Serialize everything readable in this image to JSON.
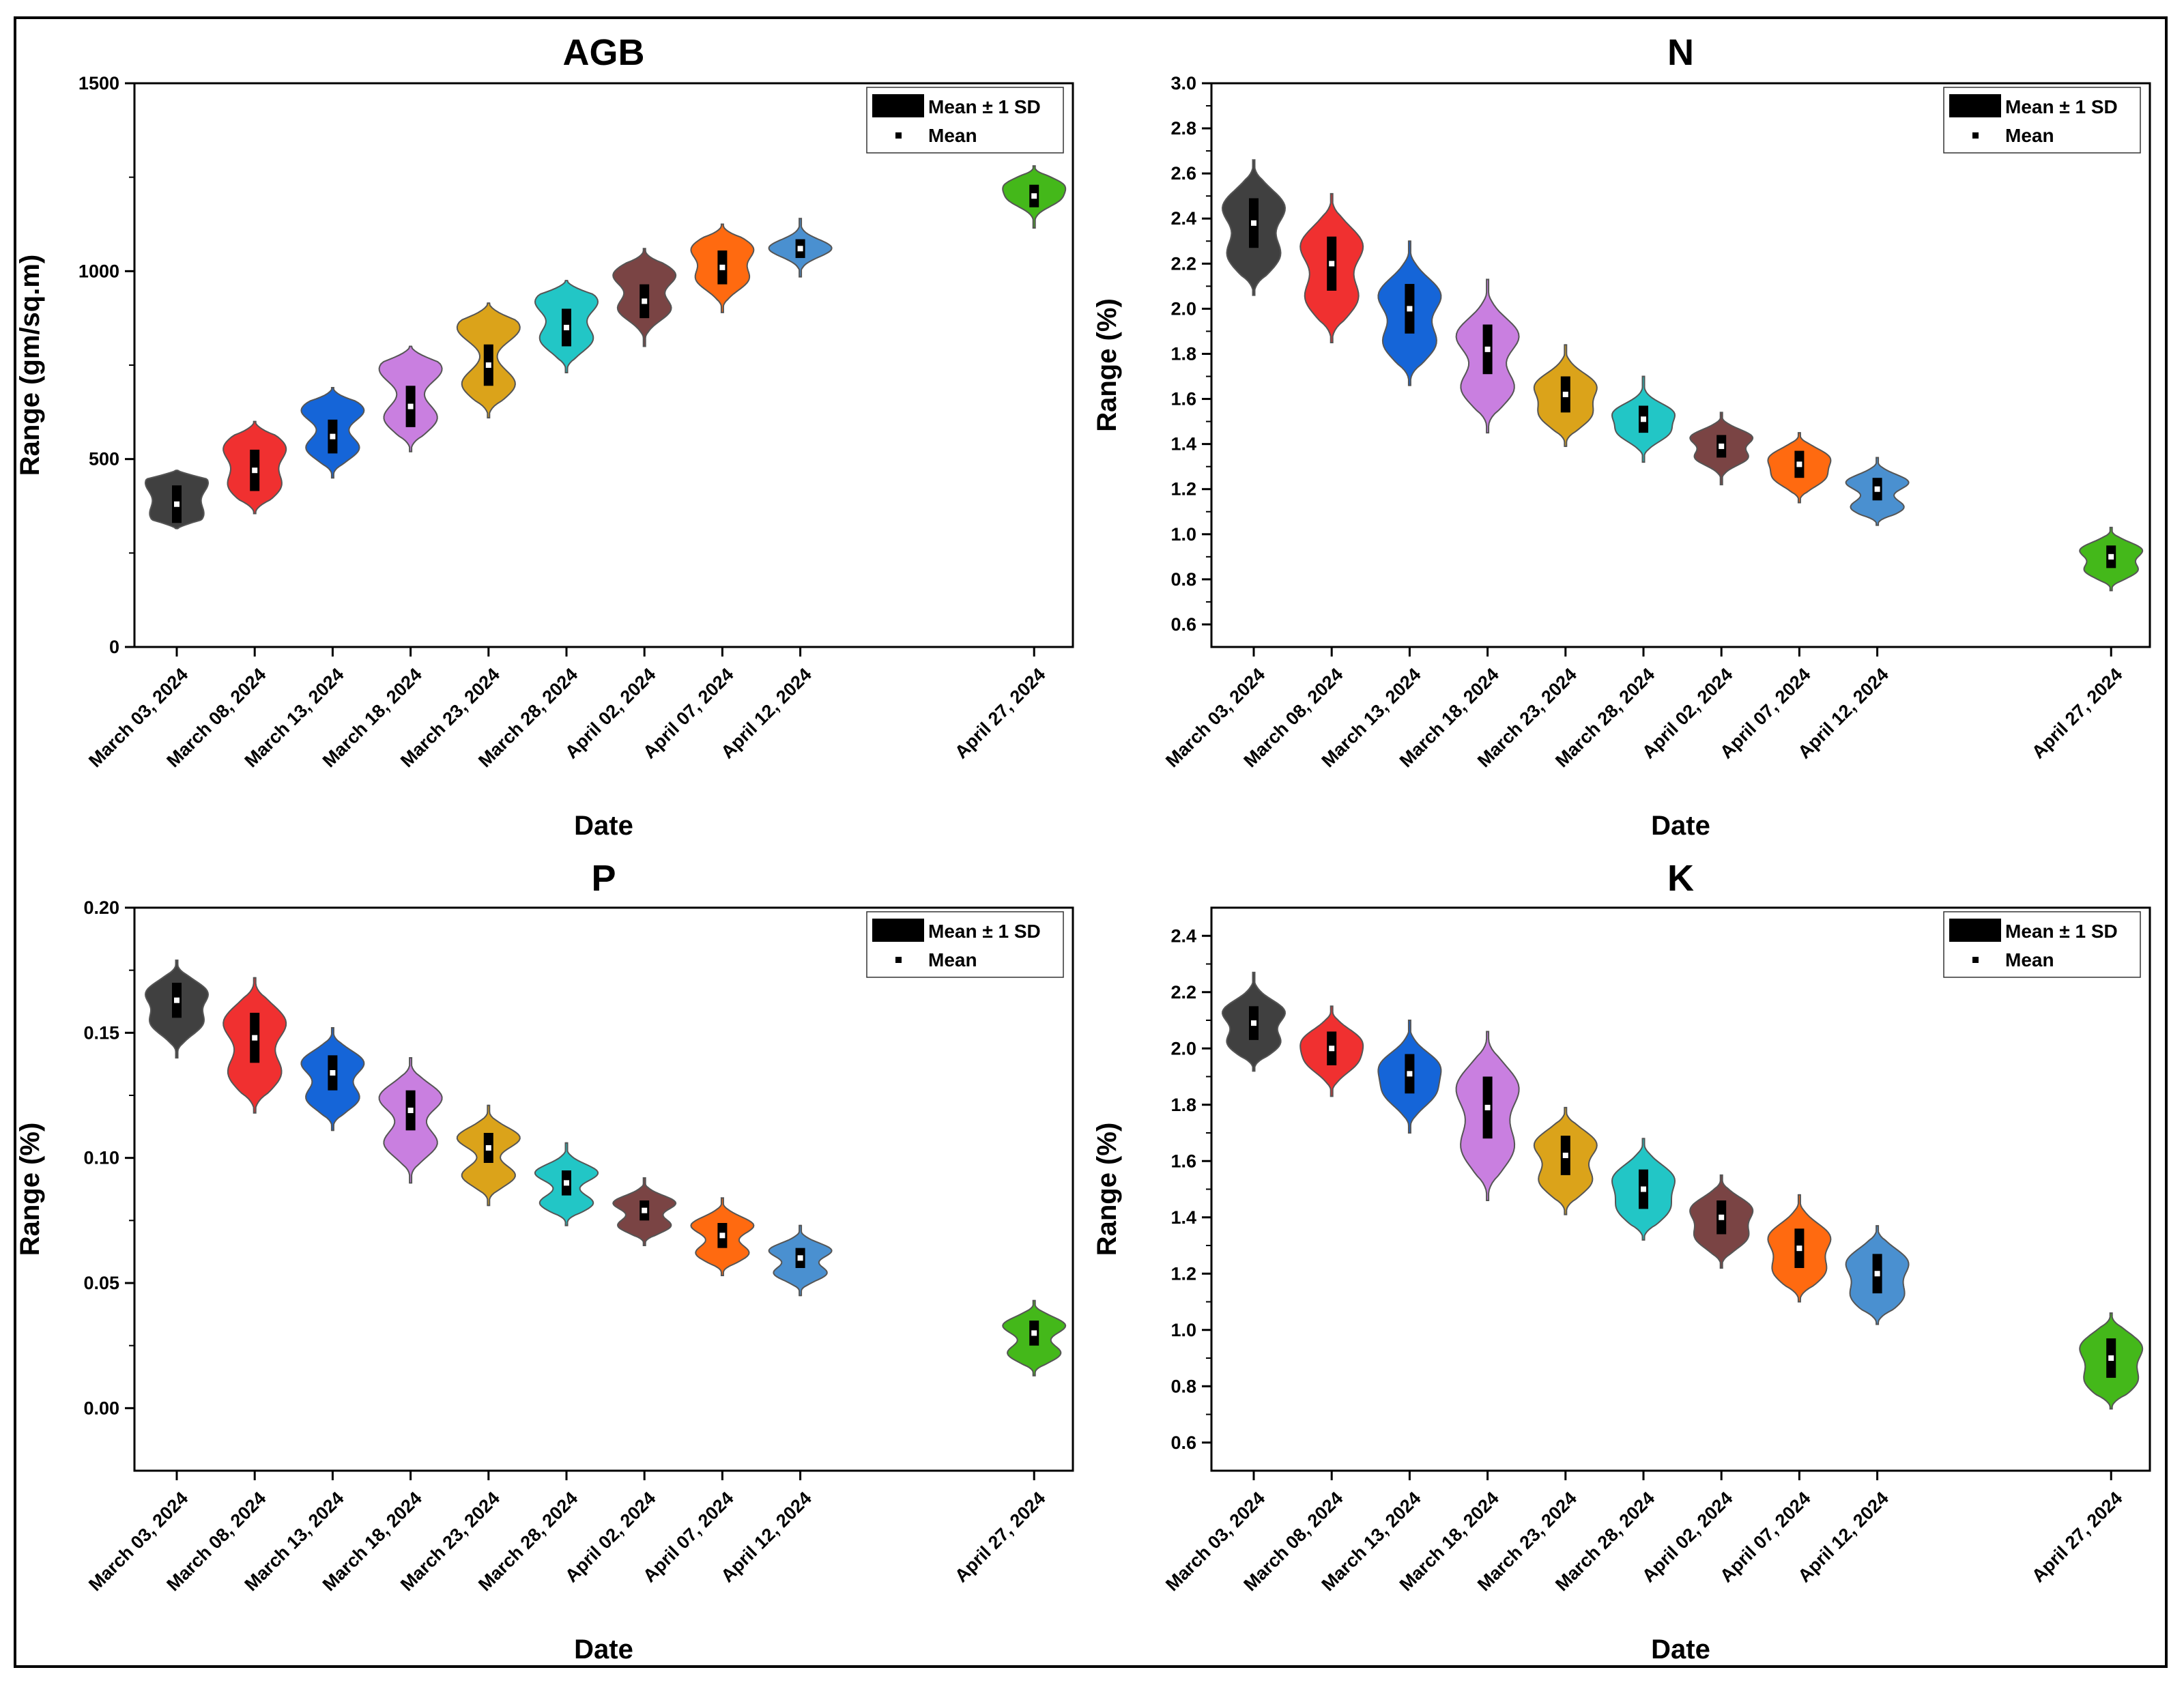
{
  "legend": {
    "sd_label": "Mean ± 1 SD",
    "mean_label": "Mean"
  },
  "chart_data": [
    {
      "type": "violin",
      "title": "AGB",
      "xlabel": "Date",
      "ylabel": "Range (gm/sq.m)",
      "ylim": [
        0,
        1500
      ],
      "yticks": [
        0,
        500,
        1000,
        1500
      ],
      "yticklabels": [
        "0",
        "500",
        "1000",
        "1500"
      ],
      "legend_position": "top-right",
      "categories": [
        "March 03, 2024",
        "March 08, 2024",
        "March 13, 2024",
        "March 18, 2024",
        "March 23, 2024",
        "March 28, 2024",
        "April 02, 2024",
        "April 07, 2024",
        "April 12, 2024",
        "April 27, 2024"
      ],
      "day_offsets": [
        0,
        5,
        10,
        15,
        20,
        25,
        30,
        35,
        40,
        55
      ],
      "colors": [
        "#404040",
        "#f03030",
        "#1565d8",
        "#c97fe0",
        "#dba31a",
        "#22c6c6",
        "#7a4444",
        "#ff6a10",
        "#4a90d0",
        "#44b81a"
      ],
      "series": [
        {
          "category": "March 03, 2024",
          "mean": 380,
          "sd": 50,
          "min": 315,
          "max": 470,
          "lower_mode": 350,
          "upper_mode": 440
        },
        {
          "category": "March 08, 2024",
          "mean": 470,
          "sd": 55,
          "min": 355,
          "max": 600,
          "lower_mode": 430,
          "upper_mode": 530
        },
        {
          "category": "March 13, 2024",
          "mean": 560,
          "sd": 45,
          "min": 450,
          "max": 690,
          "lower_mode": 530,
          "upper_mode": 630
        },
        {
          "category": "March 18, 2024",
          "mean": 640,
          "sd": 55,
          "min": 520,
          "max": 800,
          "lower_mode": 610,
          "upper_mode": 740
        },
        {
          "category": "March 23, 2024",
          "mean": 750,
          "sd": 55,
          "min": 610,
          "max": 915,
          "lower_mode": 700,
          "upper_mode": 850
        },
        {
          "category": "March 28, 2024",
          "mean": 850,
          "sd": 50,
          "min": 730,
          "max": 975,
          "lower_mode": 820,
          "upper_mode": 920
        },
        {
          "category": "April 02, 2024",
          "mean": 920,
          "sd": 45,
          "min": 800,
          "max": 1060,
          "lower_mode": 900,
          "upper_mode": 990
        },
        {
          "category": "April 07, 2024",
          "mean": 1010,
          "sd": 45,
          "min": 890,
          "max": 1125,
          "lower_mode": 980,
          "upper_mode": 1060
        },
        {
          "category": "April 12, 2024",
          "mean": 1060,
          "sd": 25,
          "min": 985,
          "max": 1140,
          "lower_mode": 1050,
          "upper_mode": 1070
        },
        {
          "category": "April 27, 2024",
          "mean": 1200,
          "sd": 30,
          "min": 1115,
          "max": 1280,
          "lower_mode": 1190,
          "upper_mode": 1230
        }
      ]
    },
    {
      "type": "violin",
      "title": "N",
      "xlabel": "Date",
      "ylabel": "Range (%)",
      "ylim": [
        0.5,
        3.0
      ],
      "yticks": [
        0.6,
        0.8,
        1.0,
        1.2,
        1.4,
        1.6,
        1.8,
        2.0,
        2.2,
        2.4,
        2.6,
        2.8,
        3.0
      ],
      "yticklabels": [
        "0.6",
        "0.8",
        "1.0",
        "1.2",
        "1.4",
        "1.6",
        "1.8",
        "2.0",
        "2.2",
        "2.4",
        "2.6",
        "2.8",
        "3.0"
      ],
      "legend_position": "top-right",
      "categories": [
        "March 03, 2024",
        "March 08, 2024",
        "March 13, 2024",
        "March 18, 2024",
        "March 23, 2024",
        "March 28, 2024",
        "April 02, 2024",
        "April 07, 2024",
        "April 12, 2024",
        "April 27, 2024"
      ],
      "day_offsets": [
        0,
        5,
        10,
        15,
        20,
        25,
        30,
        35,
        40,
        55
      ],
      "colors": [
        "#404040",
        "#f03030",
        "#1565d8",
        "#c97fe0",
        "#dba31a",
        "#22c6c6",
        "#7a4444",
        "#ff6a10",
        "#4a90d0",
        "#44b81a"
      ],
      "series": [
        {
          "category": "March 03, 2024",
          "mean": 2.38,
          "sd": 0.11,
          "min": 2.06,
          "max": 2.66,
          "lower_mode": 2.24,
          "upper_mode": 2.45
        },
        {
          "category": "March 08, 2024",
          "mean": 2.2,
          "sd": 0.12,
          "min": 1.85,
          "max": 2.51,
          "lower_mode": 2.05,
          "upper_mode": 2.28
        },
        {
          "category": "March 13, 2024",
          "mean": 2.0,
          "sd": 0.11,
          "min": 1.66,
          "max": 2.3,
          "lower_mode": 1.85,
          "upper_mode": 2.06
        },
        {
          "category": "March 18, 2024",
          "mean": 1.82,
          "sd": 0.11,
          "min": 1.45,
          "max": 2.13,
          "lower_mode": 1.65,
          "upper_mode": 1.88
        },
        {
          "category": "March 23, 2024",
          "mean": 1.62,
          "sd": 0.08,
          "min": 1.39,
          "max": 1.84,
          "lower_mode": 1.53,
          "upper_mode": 1.66
        },
        {
          "category": "March 28, 2024",
          "mean": 1.51,
          "sd": 0.06,
          "min": 1.32,
          "max": 1.7,
          "lower_mode": 1.45,
          "upper_mode": 1.54
        },
        {
          "category": "April 02, 2024",
          "mean": 1.39,
          "sd": 0.05,
          "min": 1.22,
          "max": 1.54,
          "lower_mode": 1.34,
          "upper_mode": 1.43
        },
        {
          "category": "April 07, 2024",
          "mean": 1.31,
          "sd": 0.06,
          "min": 1.14,
          "max": 1.45,
          "lower_mode": 1.25,
          "upper_mode": 1.34
        },
        {
          "category": "April 12, 2024",
          "mean": 1.2,
          "sd": 0.05,
          "min": 1.04,
          "max": 1.34,
          "lower_mode": 1.12,
          "upper_mode": 1.23
        },
        {
          "category": "April 27, 2024",
          "mean": 0.9,
          "sd": 0.05,
          "min": 0.75,
          "max": 1.03,
          "lower_mode": 0.84,
          "upper_mode": 0.93
        }
      ]
    },
    {
      "type": "violin",
      "title": "P",
      "xlabel": "Date",
      "ylabel": "Range (%)",
      "ylim": [
        -0.025,
        0.2
      ],
      "yticks": [
        0.0,
        0.05,
        0.1,
        0.15,
        0.2
      ],
      "yticklabels": [
        "0.00",
        "0.05",
        "0.10",
        "0.15",
        "0.20"
      ],
      "legend_position": "top-right",
      "categories": [
        "March 03, 2024",
        "March 08, 2024",
        "March 13, 2024",
        "March 18, 2024",
        "March 23, 2024",
        "March 28, 2024",
        "April 02, 2024",
        "April 07, 2024",
        "April 12, 2024",
        "April 27, 2024"
      ],
      "day_offsets": [
        0,
        5,
        10,
        15,
        20,
        25,
        30,
        35,
        40,
        55
      ],
      "colors": [
        "#404040",
        "#f03030",
        "#1565d8",
        "#c97fe0",
        "#dba31a",
        "#22c6c6",
        "#7a4444",
        "#ff6a10",
        "#4a90d0",
        "#44b81a"
      ],
      "series": [
        {
          "category": "March 03, 2024",
          "mean": 0.163,
          "sd": 0.007,
          "min": 0.14,
          "max": 0.179,
          "lower_mode": 0.154,
          "upper_mode": 0.166
        },
        {
          "category": "March 08, 2024",
          "mean": 0.148,
          "sd": 0.01,
          "min": 0.118,
          "max": 0.172,
          "lower_mode": 0.134,
          "upper_mode": 0.154
        },
        {
          "category": "March 13, 2024",
          "mean": 0.134,
          "sd": 0.007,
          "min": 0.111,
          "max": 0.152,
          "lower_mode": 0.124,
          "upper_mode": 0.138
        },
        {
          "category": "March 18, 2024",
          "mean": 0.119,
          "sd": 0.008,
          "min": 0.09,
          "max": 0.14,
          "lower_mode": 0.106,
          "upper_mode": 0.124
        },
        {
          "category": "March 23, 2024",
          "mean": 0.104,
          "sd": 0.006,
          "min": 0.081,
          "max": 0.121,
          "lower_mode": 0.093,
          "upper_mode": 0.108
        },
        {
          "category": "March 28, 2024",
          "mean": 0.09,
          "sd": 0.005,
          "min": 0.073,
          "max": 0.106,
          "lower_mode": 0.082,
          "upper_mode": 0.094
        },
        {
          "category": "April 02, 2024",
          "mean": 0.079,
          "sd": 0.004,
          "min": 0.065,
          "max": 0.092,
          "lower_mode": 0.073,
          "upper_mode": 0.082
        },
        {
          "category": "April 07, 2024",
          "mean": 0.069,
          "sd": 0.005,
          "min": 0.053,
          "max": 0.084,
          "lower_mode": 0.062,
          "upper_mode": 0.073
        },
        {
          "category": "April 12, 2024",
          "mean": 0.06,
          "sd": 0.004,
          "min": 0.045,
          "max": 0.073,
          "lower_mode": 0.054,
          "upper_mode": 0.063
        },
        {
          "category": "April 27, 2024",
          "mean": 0.03,
          "sd": 0.005,
          "min": 0.013,
          "max": 0.043,
          "lower_mode": 0.022,
          "upper_mode": 0.033
        }
      ]
    },
    {
      "type": "violin",
      "title": "K",
      "xlabel": "Date",
      "ylabel": "Range (%)",
      "ylim": [
        0.5,
        2.5
      ],
      "yticks": [
        0.6,
        0.8,
        1.0,
        1.2,
        1.4,
        1.6,
        1.8,
        2.0,
        2.2,
        2.4
      ],
      "yticklabels": [
        "0.6",
        "0.8",
        "1.0",
        "1.2",
        "1.4",
        "1.6",
        "1.8",
        "2.0",
        "2.2",
        "2.4"
      ],
      "legend_position": "top-right",
      "categories": [
        "March 03, 2024",
        "March 08, 2024",
        "March 13, 2024",
        "March 18, 2024",
        "March 23, 2024",
        "March 28, 2024",
        "April 02, 2024",
        "April 07, 2024",
        "April 12, 2024",
        "April 27, 2024"
      ],
      "day_offsets": [
        0,
        5,
        10,
        15,
        20,
        25,
        30,
        35,
        40,
        55
      ],
      "colors": [
        "#404040",
        "#f03030",
        "#1565d8",
        "#c97fe0",
        "#dba31a",
        "#22c6c6",
        "#7a4444",
        "#ff6a10",
        "#4a90d0",
        "#44b81a"
      ],
      "series": [
        {
          "category": "March 03, 2024",
          "mean": 2.09,
          "sd": 0.06,
          "min": 1.92,
          "max": 2.27,
          "lower_mode": 2.02,
          "upper_mode": 2.13
        },
        {
          "category": "March 08, 2024",
          "mean": 2.0,
          "sd": 0.06,
          "min": 1.83,
          "max": 2.15,
          "lower_mode": 1.95,
          "upper_mode": 2.03
        },
        {
          "category": "March 13, 2024",
          "mean": 1.91,
          "sd": 0.07,
          "min": 1.7,
          "max": 2.1,
          "lower_mode": 1.84,
          "upper_mode": 1.94
        },
        {
          "category": "March 18, 2024",
          "mean": 1.79,
          "sd": 0.11,
          "min": 1.46,
          "max": 2.06,
          "lower_mode": 1.65,
          "upper_mode": 1.86
        },
        {
          "category": "March 23, 2024",
          "mean": 1.62,
          "sd": 0.07,
          "min": 1.41,
          "max": 1.79,
          "lower_mode": 1.53,
          "upper_mode": 1.66
        },
        {
          "category": "March 28, 2024",
          "mean": 1.5,
          "sd": 0.07,
          "min": 1.32,
          "max": 1.68,
          "lower_mode": 1.43,
          "upper_mode": 1.54
        },
        {
          "category": "April 02, 2024",
          "mean": 1.4,
          "sd": 0.06,
          "min": 1.22,
          "max": 1.55,
          "lower_mode": 1.33,
          "upper_mode": 1.43
        },
        {
          "category": "April 07, 2024",
          "mean": 1.29,
          "sd": 0.07,
          "min": 1.1,
          "max": 1.48,
          "lower_mode": 1.21,
          "upper_mode": 1.33
        },
        {
          "category": "April 12, 2024",
          "mean": 1.2,
          "sd": 0.07,
          "min": 1.02,
          "max": 1.37,
          "lower_mode": 1.12,
          "upper_mode": 1.24
        },
        {
          "category": "April 27, 2024",
          "mean": 0.9,
          "sd": 0.07,
          "min": 0.72,
          "max": 1.06,
          "lower_mode": 0.82,
          "upper_mode": 0.94
        }
      ]
    }
  ]
}
